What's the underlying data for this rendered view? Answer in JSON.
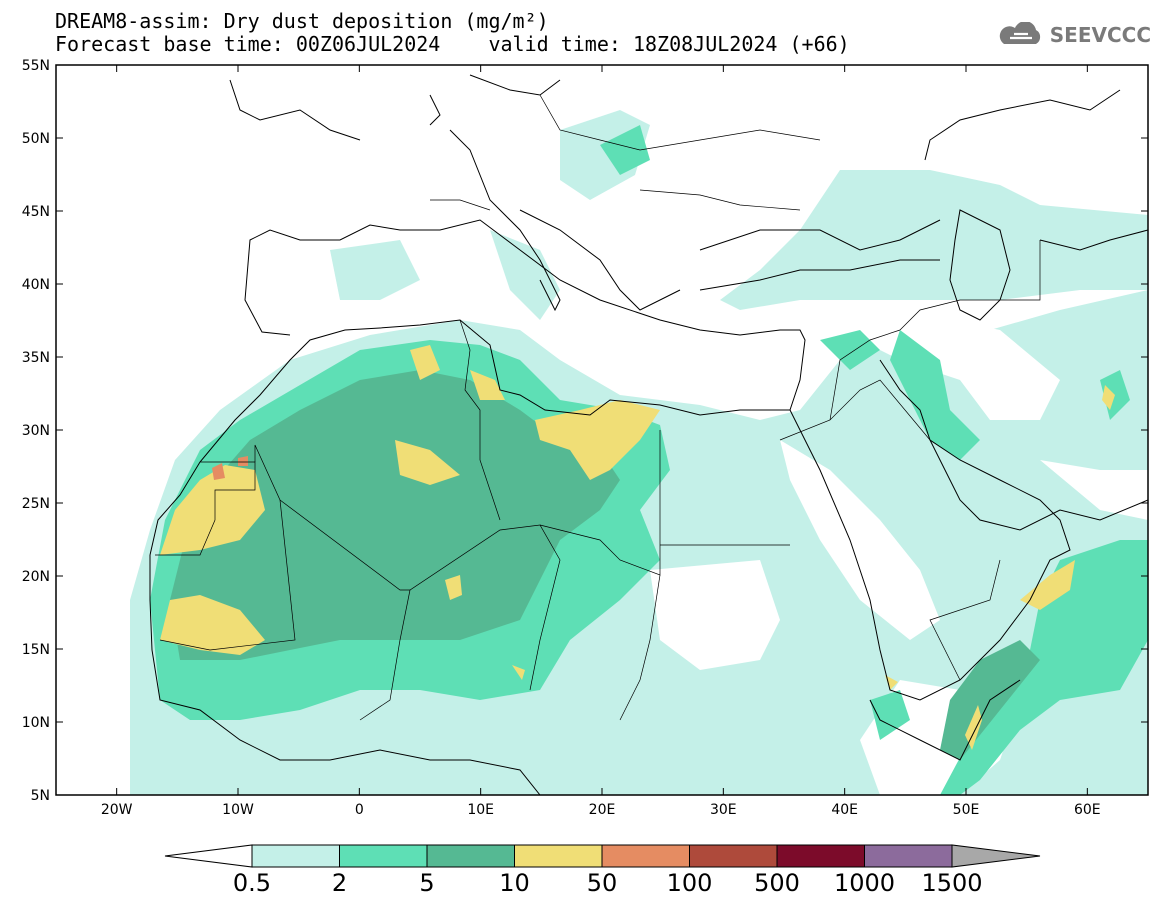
{
  "title": {
    "line1": "DREAM8-assim: Dry dust deposition (mg/m²)",
    "line2": "Forecast base time: 00Z06JUL2024    valid time: 18Z08JUL2024 (+66)"
  },
  "logo": {
    "text": "SEEVCCC",
    "icon": "cloud-icon"
  },
  "map": {
    "lon_range": [
      -25,
      65
    ],
    "lat_range": [
      5,
      55
    ],
    "lat_ticks": [
      {
        "value": 55,
        "label": "55N"
      },
      {
        "value": 50,
        "label": "50N"
      },
      {
        "value": 45,
        "label": "45N"
      },
      {
        "value": 40,
        "label": "40N"
      },
      {
        "value": 35,
        "label": "35N"
      },
      {
        "value": 30,
        "label": "30N"
      },
      {
        "value": 25,
        "label": "25N"
      },
      {
        "value": 20,
        "label": "20N"
      },
      {
        "value": 15,
        "label": "15N"
      },
      {
        "value": 10,
        "label": "10N"
      },
      {
        "value": 5,
        "label": "5N"
      }
    ],
    "lon_ticks": [
      {
        "value": -20,
        "label": "20W"
      },
      {
        "value": -10,
        "label": "10W"
      },
      {
        "value": 0,
        "label": "0"
      },
      {
        "value": 10,
        "label": "10E"
      },
      {
        "value": 20,
        "label": "20E"
      },
      {
        "value": 30,
        "label": "30E"
      },
      {
        "value": 40,
        "label": "40E"
      },
      {
        "value": 50,
        "label": "50E"
      },
      {
        "value": 60,
        "label": "60E"
      }
    ]
  },
  "colorbar": {
    "levels": [
      "0.5",
      "2",
      "5",
      "10",
      "50",
      "100",
      "500",
      "1000",
      "1500"
    ],
    "colors": [
      "#c4f0e8",
      "#5edfb5",
      "#55b993",
      "#f0de76",
      "#e58c62",
      "#ae4a3b",
      "#7c0b2a",
      "#8c6b9c"
    ],
    "under_color": "#ffffff",
    "over_color": "#a8a8a8"
  }
}
